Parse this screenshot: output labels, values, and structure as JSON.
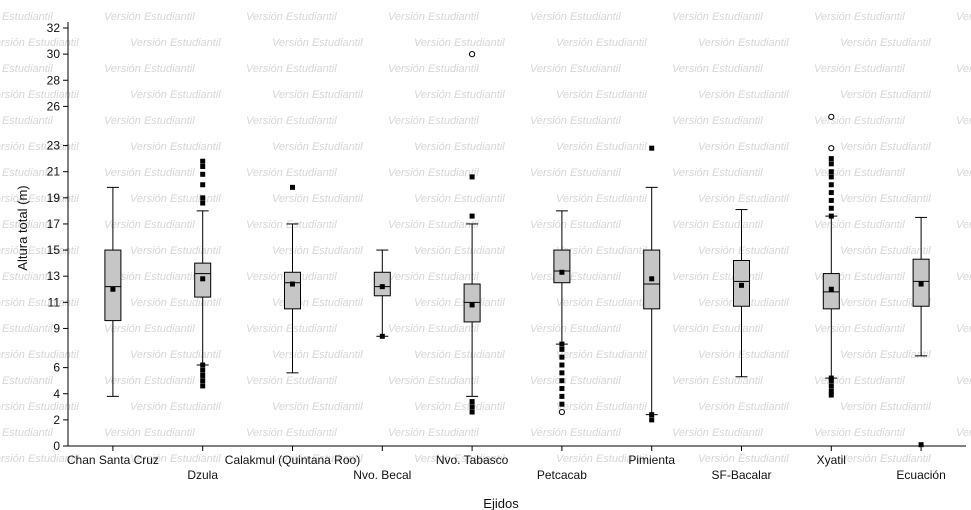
{
  "watermark": "Versión Estudiantil",
  "chart_data": {
    "type": "boxplot",
    "xlabel": "Ejidos",
    "ylabel": "Altura total (m)",
    "ylim": [
      0,
      32
    ],
    "yticks": [
      0,
      2,
      4,
      6,
      9,
      11,
      13,
      15,
      17,
      19,
      21,
      23,
      26,
      28,
      30,
      32
    ],
    "grid": false,
    "colors": {
      "box": "#c6c6c6",
      "stroke": "#000000"
    },
    "categories": [
      "Chan Santa Cruz",
      "Dzula",
      "Calakmul (Quintana Roo)",
      "Nvo. Becal",
      "Nvo. Tabasco",
      "Petcacab",
      "Pimienta",
      "SF-Bacalar",
      "Xyatil",
      "Ecuación"
    ],
    "series": [
      {
        "category": "Chan Santa Cruz",
        "whisker_low": 3.8,
        "q1": 9.6,
        "median": 12.2,
        "q3": 15.0,
        "whisker_high": 19.8,
        "mean": 12.0,
        "outliers": [],
        "extremes": []
      },
      {
        "category": "Dzula",
        "whisker_low": 6.2,
        "q1": 11.4,
        "median": 13.2,
        "q3": 14.0,
        "whisker_high": 18.0,
        "mean": 12.8,
        "outliers": [
          4.6,
          5.0,
          5.4,
          5.8,
          6.2,
          18.6,
          19.0,
          20.0,
          20.8,
          21.4,
          21.8
        ],
        "extremes": []
      },
      {
        "category": "Calakmul (Quintana Roo)",
        "whisker_low": 5.6,
        "q1": 10.5,
        "median": 12.5,
        "q3": 13.3,
        "whisker_high": 17.0,
        "mean": 12.4,
        "outliers": [
          19.8
        ],
        "extremes": []
      },
      {
        "category": "Nvo. Becal",
        "whisker_low": 8.4,
        "q1": 11.5,
        "median": 12.2,
        "q3": 13.3,
        "whisker_high": 15.0,
        "mean": 12.2,
        "outliers": [
          8.4
        ],
        "extremes": []
      },
      {
        "category": "Nvo. Tabasco",
        "whisker_low": 3.8,
        "q1": 9.5,
        "median": 11.0,
        "q3": 12.4,
        "whisker_high": 17.0,
        "mean": 10.8,
        "outliers": [
          2.6,
          3.0,
          3.4,
          17.6,
          20.6
        ],
        "extremes": [
          30.0
        ]
      },
      {
        "category": "Petcacab",
        "whisker_low": 7.8,
        "q1": 12.5,
        "median": 13.4,
        "q3": 15.0,
        "whisker_high": 18.0,
        "mean": 13.3,
        "outliers": [
          3.2,
          3.8,
          4.4,
          5.0,
          5.6,
          6.2,
          6.8,
          7.4,
          7.8
        ],
        "extremes": [
          2.6
        ]
      },
      {
        "category": "Pimienta",
        "whisker_low": 2.4,
        "q1": 10.5,
        "median": 12.4,
        "q3": 15.0,
        "whisker_high": 19.8,
        "mean": 12.8,
        "outliers": [
          2.0,
          2.4,
          22.8
        ],
        "extremes": []
      },
      {
        "category": "SF-Bacalar",
        "whisker_low": 5.3,
        "q1": 10.7,
        "median": 12.6,
        "q3": 14.2,
        "whisker_high": 18.1,
        "mean": 12.3,
        "outliers": [],
        "extremes": []
      },
      {
        "category": "Xyatil",
        "whisker_low": 5.2,
        "q1": 10.5,
        "median": 11.8,
        "q3": 13.2,
        "whisker_high": 17.6,
        "mean": 12.0,
        "outliers": [
          3.9,
          4.2,
          4.6,
          5.0,
          5.2,
          17.6,
          18.2,
          18.8,
          19.4,
          20.0,
          20.6,
          21.0,
          21.6,
          22.0
        ],
        "extremes": [
          22.8,
          25.2
        ]
      },
      {
        "category": "Ecuación",
        "whisker_low": 6.9,
        "q1": 10.7,
        "median": 12.6,
        "q3": 14.3,
        "whisker_high": 17.5,
        "mean": 12.4,
        "outliers": [
          0.1
        ],
        "extremes": []
      }
    ]
  }
}
